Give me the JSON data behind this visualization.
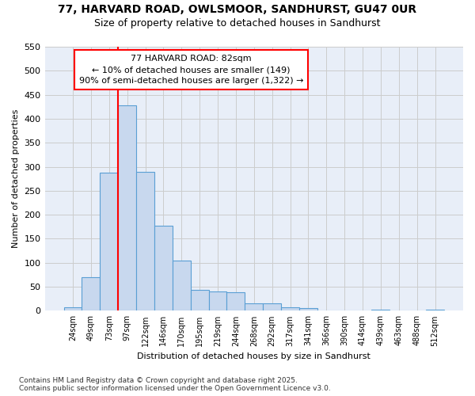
{
  "title_line1": "77, HARVARD ROAD, OWLSMOOR, SANDHURST, GU47 0UR",
  "title_line2": "Size of property relative to detached houses in Sandhurst",
  "xlabel": "Distribution of detached houses by size in Sandhurst",
  "ylabel": "Number of detached properties",
  "categories": [
    "24sqm",
    "49sqm",
    "73sqm",
    "97sqm",
    "122sqm",
    "146sqm",
    "170sqm",
    "195sqm",
    "219sqm",
    "244sqm",
    "268sqm",
    "292sqm",
    "317sqm",
    "341sqm",
    "366sqm",
    "390sqm",
    "414sqm",
    "439sqm",
    "463sqm",
    "488sqm",
    "512sqm"
  ],
  "values": [
    8,
    70,
    288,
    428,
    290,
    178,
    105,
    44,
    40,
    39,
    15,
    15,
    7,
    5,
    0,
    0,
    0,
    3,
    0,
    0,
    3
  ],
  "bar_color": "#c8d8ee",
  "bar_edge_color": "#5a9fd4",
  "vline_x": 2.5,
  "vline_color": "red",
  "annotation_text": "77 HARVARD ROAD: 82sqm\n← 10% of detached houses are smaller (149)\n90% of semi-detached houses are larger (1,322) →",
  "annotation_box_color": "white",
  "annotation_box_edge_color": "red",
  "ylim": [
    0,
    550
  ],
  "yticks": [
    0,
    50,
    100,
    150,
    200,
    250,
    300,
    350,
    400,
    450,
    500,
    550
  ],
  "footnote": "Contains HM Land Registry data © Crown copyright and database right 2025.\nContains public sector information licensed under the Open Government Licence v3.0.",
  "grid_color": "#cccccc",
  "bg_color": "#ffffff",
  "plot_bg_color": "#e8eef8"
}
